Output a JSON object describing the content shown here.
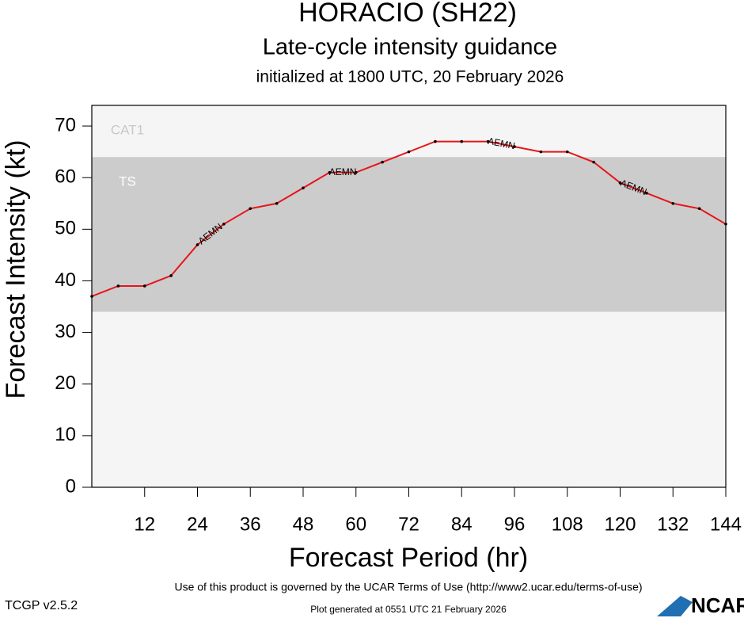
{
  "chart_data": {
    "type": "line",
    "title": "HORACIO (SH22)",
    "subtitle": "Late-cycle intensity guidance",
    "initialized": "initialized at 1800 UTC, 20 February 2026",
    "x_label": "Forecast Period (hr)",
    "y_label": "Forecast Intensity (kt)",
    "x": [
      0,
      6,
      12,
      18,
      24,
      30,
      36,
      42,
      48,
      54,
      60,
      66,
      72,
      78,
      84,
      90,
      96,
      102,
      108,
      114,
      120,
      126,
      132,
      138,
      144
    ],
    "series": [
      {
        "name": "AEMN",
        "color": "#e8141a",
        "values": [
          37,
          39,
          39,
          41,
          47,
          51,
          54,
          55,
          58,
          61,
          61,
          63,
          65,
          67,
          67,
          67,
          66,
          65,
          65,
          63,
          59,
          57,
          55,
          54,
          51
        ]
      }
    ],
    "bands": [
      {
        "label": "TS",
        "from": 34,
        "to": 64,
        "color": "#cccccc",
        "text_color": "#ffffff"
      },
      {
        "label": "CAT1",
        "from": 64,
        "to": 74,
        "color": "#f5f5f5",
        "text_color": "#c8c8c8"
      }
    ],
    "background": "#f5f5f5",
    "xlim": [
      0,
      144
    ],
    "xticks": [
      12,
      24,
      36,
      48,
      60,
      72,
      84,
      96,
      108,
      120,
      132,
      144
    ],
    "ylim": [
      0,
      74
    ],
    "yticks": [
      0,
      10,
      20,
      30,
      40,
      50,
      60,
      70
    ],
    "footer": "Use of this product is governed by the UCAR Terms of Use (http://www2.ucar.edu/terms-of-use)",
    "version": "TCGP v2.5.2",
    "generated": "Plot generated at 0551 UTC   21 February 2026",
    "logo": "NCAR"
  }
}
